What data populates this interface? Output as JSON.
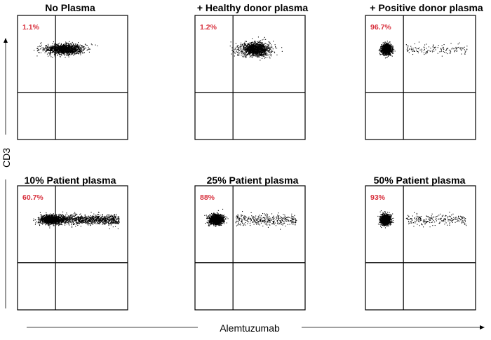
{
  "figure": {
    "ylabel": "CD3",
    "xlabel": "Alemtuzumab",
    "colors": {
      "percent_text": "#d8303d",
      "dots": "#000000",
      "frame": "#000000"
    }
  },
  "chart_data": [
    {
      "type": "scatter",
      "title": "No Plasma",
      "percent_label": "1.1%",
      "population_fraction_left_of_gate": 0.011,
      "cluster": {
        "x_center": 0.43,
        "x_spread": 0.18,
        "y_center": 0.2,
        "y_spread": 0.045
      }
    },
    {
      "type": "scatter",
      "title": "+ Healthy donor plasma",
      "percent_label": "1.2%",
      "population_fraction_left_of_gate": 0.012,
      "cluster": {
        "x_center": 0.55,
        "x_spread": 0.14,
        "y_center": 0.2,
        "y_spread": 0.06
      }
    },
    {
      "type": "scatter",
      "title": "+ Positive donor plasma",
      "percent_label": "96.7%",
      "population_fraction_left_of_gate": 0.967,
      "cluster": {
        "x_center": 0.19,
        "x_spread": 0.05,
        "y_center": 0.2,
        "y_spread": 0.045
      }
    },
    {
      "type": "scatter",
      "title": "10% Patient plasma",
      "percent_label": "60.7%",
      "population_fraction_left_of_gate": 0.607,
      "cluster": {
        "x_center": 0.3,
        "x_spread": 0.11,
        "y_center": 0.2,
        "y_spread": 0.04
      }
    },
    {
      "type": "scatter",
      "title": "25% Patient plasma",
      "percent_label": "88%",
      "population_fraction_left_of_gate": 0.88,
      "cluster": {
        "x_center": 0.19,
        "x_spread": 0.07,
        "y_center": 0.2,
        "y_spread": 0.045
      }
    },
    {
      "type": "scatter",
      "title": "50% Patient plasma",
      "percent_label": "93%",
      "population_fraction_left_of_gate": 0.93,
      "cluster": {
        "x_center": 0.18,
        "x_spread": 0.05,
        "y_center": 0.2,
        "y_spread": 0.045
      }
    }
  ]
}
